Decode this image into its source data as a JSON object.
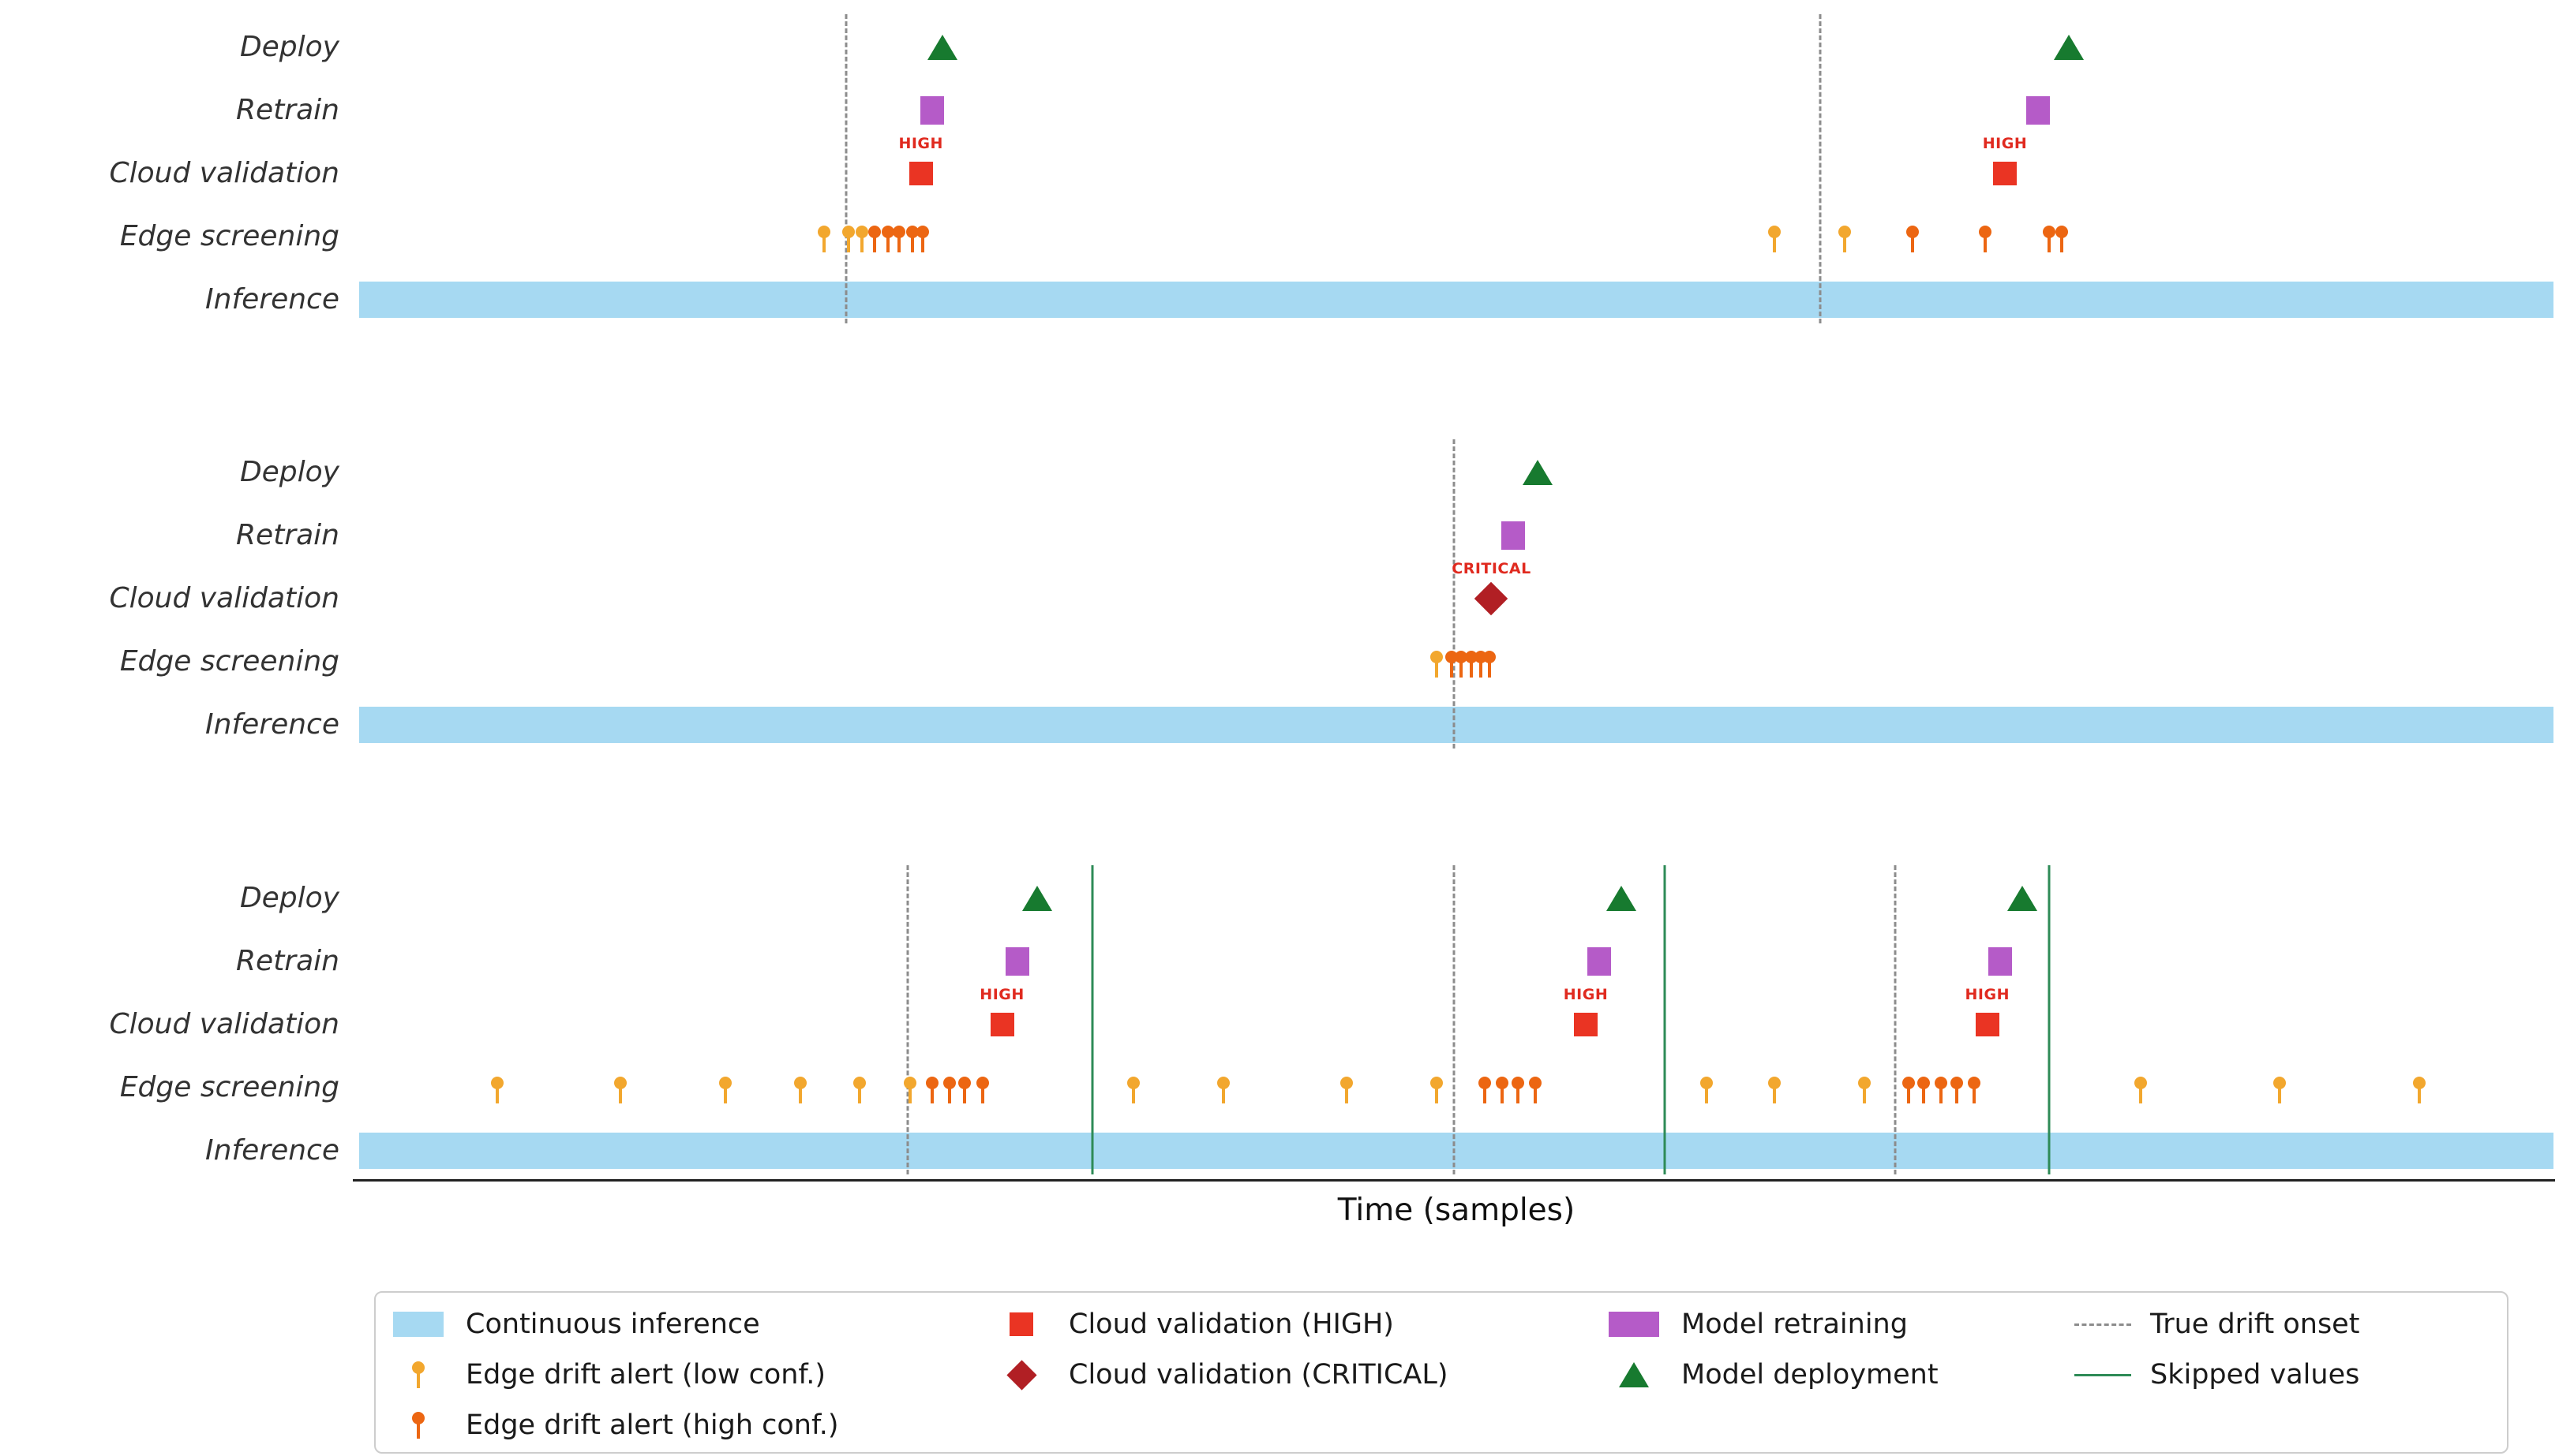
{
  "colors": {
    "continuous_inference": "#a6d9f2",
    "edge_alert_low": "#f2a72e",
    "edge_alert_high": "#ec6612",
    "cloud_validation_high": "#ea3423",
    "cloud_validation_critical": "#b11f24",
    "model_retraining": "#b55bc8",
    "model_deployment": "#177a2f",
    "true_drift_onset": "#8c8c8c",
    "skipped_values": "#2e8b57",
    "severity_text": "#e02a1f"
  },
  "chart_data": {
    "type": "event-timeline",
    "title": "",
    "xlabel": "Time (samples)",
    "xlim_percent": [
      0,
      100
    ],
    "x_ticks": [],
    "grid": false,
    "legend_position": "bottom",
    "row_labels": [
      "Deploy",
      "Retrain",
      "Cloud validation",
      "Edge screening",
      "Inference"
    ],
    "panels": [
      {
        "true_drift_onset_x": [
          22.2,
          66.6
        ],
        "skipped_values_x": [],
        "edge_alerts_low_x": [
          21.2,
          22.3,
          22.9,
          64.5,
          67.7
        ],
        "edge_alerts_high_x": [
          23.5,
          24.1,
          24.6,
          25.2,
          25.7,
          70.8,
          74.1,
          77.0,
          77.6
        ],
        "cloud_validations": [
          {
            "x": 25.6,
            "severity": "HIGH"
          },
          {
            "x": 75.0,
            "severity": "HIGH"
          }
        ],
        "retrain_x": [
          26.1,
          76.5
        ],
        "deploy_x": [
          26.6,
          77.9
        ]
      },
      {
        "true_drift_onset_x": [
          49.9
        ],
        "skipped_values_x": [],
        "edge_alerts_low_x": [
          49.1
        ],
        "edge_alerts_high_x": [
          49.8,
          50.2,
          50.7,
          51.1,
          51.5
        ],
        "cloud_validations": [
          {
            "x": 51.6,
            "severity": "CRITICAL"
          }
        ],
        "retrain_x": [
          52.6
        ],
        "deploy_x": [
          53.7
        ]
      },
      {
        "true_drift_onset_x": [
          25.0,
          49.9,
          70.0
        ],
        "skipped_values_x": [
          33.4,
          59.5,
          77.0
        ],
        "edge_alerts_low_x": [
          6.3,
          11.9,
          16.7,
          20.1,
          22.8,
          25.1,
          35.3,
          39.4,
          45.0,
          49.1,
          61.4,
          64.5,
          68.6,
          81.2,
          87.5,
          93.9
        ],
        "edge_alerts_high_x": [
          26.1,
          26.9,
          27.6,
          28.4,
          51.3,
          52.1,
          52.8,
          53.6,
          70.6,
          71.3,
          72.1,
          72.8,
          73.6
        ],
        "cloud_validations": [
          {
            "x": 29.3,
            "severity": "HIGH"
          },
          {
            "x": 55.9,
            "severity": "HIGH"
          },
          {
            "x": 74.2,
            "severity": "HIGH"
          }
        ],
        "retrain_x": [
          30.0,
          56.5,
          74.8
        ],
        "deploy_x": [
          30.9,
          57.5,
          75.8
        ]
      }
    ]
  },
  "legend": {
    "items": [
      {
        "label": "Continuous inference",
        "marker": "inference-patch",
        "col": 0,
        "row": 0
      },
      {
        "label": "Edge drift alert (low conf.)",
        "marker": "lollipop-low",
        "col": 0,
        "row": 1
      },
      {
        "label": "Edge drift alert (high conf.)",
        "marker": "lollipop-high",
        "col": 0,
        "row": 2
      },
      {
        "label": "Cloud validation (HIGH)",
        "marker": "square-high",
        "col": 1,
        "row": 0
      },
      {
        "label": "Cloud validation (CRITICAL)",
        "marker": "diamond-critical",
        "col": 1,
        "row": 1
      },
      {
        "label": "Model retraining",
        "marker": "retrain-patch",
        "col": 2,
        "row": 0
      },
      {
        "label": "Model deployment",
        "marker": "deploy-triangle",
        "col": 2,
        "row": 1
      },
      {
        "label": "True drift onset",
        "marker": "dashed-line",
        "col": 3,
        "row": 0
      },
      {
        "label": "Skipped values",
        "marker": "solid-line",
        "col": 3,
        "row": 1
      }
    ]
  }
}
